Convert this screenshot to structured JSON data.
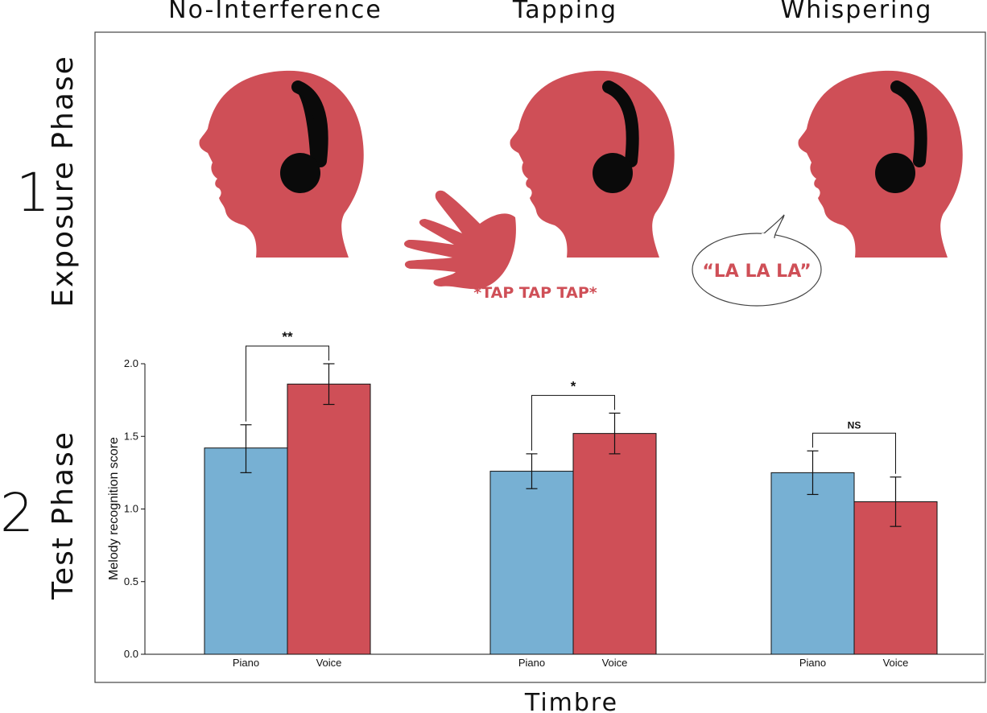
{
  "colors": {
    "red": "#cf4f57",
    "blue": "#77b0d3",
    "headphones": "#0a0a0a"
  },
  "phases": {
    "exposure": {
      "number": "1",
      "label": "Exposure Phase"
    },
    "test": {
      "number": "2",
      "label": "Test Phase"
    }
  },
  "illustrations": {
    "tapping_text": "*TAP TAP TAP*",
    "whisper_text": "“LA LA LA”",
    "icons": [
      "head-with-headphones-icon",
      "hand-icon",
      "speech-bubble-icon"
    ]
  },
  "chart_data": {
    "type": "bar",
    "xlabel": "Timbre",
    "ylabel": "Melody recognition score",
    "ylim": [
      0,
      2.0
    ],
    "yticks": [
      "0.0",
      "0.5",
      "1.0",
      "1.5",
      "2.0"
    ],
    "groups": [
      {
        "name": "No-Interference",
        "bars": [
          {
            "category": "Piano",
            "value": 1.42,
            "err_low": 1.25,
            "err_high": 1.58,
            "color": "#77b0d3"
          },
          {
            "category": "Voice",
            "value": 1.86,
            "err_low": 1.72,
            "err_high": 2.0,
            "color": "#cf4f57"
          }
        ],
        "significance": "**"
      },
      {
        "name": "Tapping",
        "bars": [
          {
            "category": "Piano",
            "value": 1.26,
            "err_low": 1.14,
            "err_high": 1.38,
            "color": "#77b0d3"
          },
          {
            "category": "Voice",
            "value": 1.52,
            "err_low": 1.38,
            "err_high": 1.66,
            "color": "#cf4f57"
          }
        ],
        "significance": "*"
      },
      {
        "name": "Whispering",
        "bars": [
          {
            "category": "Piano",
            "value": 1.25,
            "err_low": 1.1,
            "err_high": 1.4,
            "color": "#77b0d3"
          },
          {
            "category": "Voice",
            "value": 1.05,
            "err_low": 0.88,
            "err_high": 1.22,
            "color": "#cf4f57"
          }
        ],
        "significance": "NS"
      }
    ]
  }
}
